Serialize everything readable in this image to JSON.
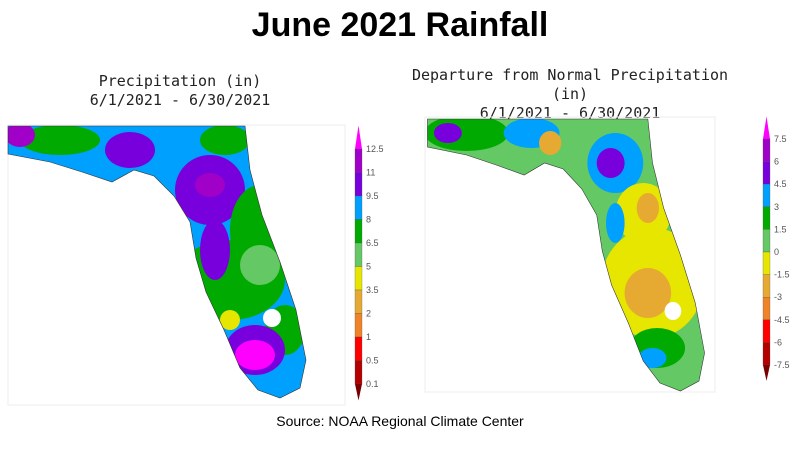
{
  "title": "June 2021 Rainfall",
  "left_map": {
    "title": "Precipitation (in)",
    "dates": "6/1/2021 - 6/30/2021",
    "colorbar_labels": [
      "12.5",
      "11",
      "9.5",
      "8",
      "6.5",
      "5",
      "3.5",
      "2",
      "1",
      "0.5",
      "0.1"
    ],
    "colorbar_colors": [
      "#ff00ff",
      "#a000c8",
      "#7800dc",
      "#00a0ff",
      "#00aa00",
      "#64c864",
      "#e6e600",
      "#e6aa32",
      "#f08228",
      "#ff0000",
      "#b40000",
      "#780000"
    ]
  },
  "right_map": {
    "title": "Departure from Normal Precipitation (in)",
    "dates": "6/1/2021 - 6/30/2021",
    "colorbar_labels": [
      "7.5",
      "6",
      "4.5",
      "3",
      "1.5",
      "0",
      "-1.5",
      "-3",
      "-4.5",
      "-6",
      "-7.5"
    ],
    "colorbar_colors": [
      "#ff00ff",
      "#a000c8",
      "#7800dc",
      "#00a0ff",
      "#00aa00",
      "#64c864",
      "#e6e600",
      "#e6aa32",
      "#f08228",
      "#ff0000",
      "#b40000",
      "#780000"
    ]
  },
  "source": "Source:  NOAA Regional Climate Center"
}
